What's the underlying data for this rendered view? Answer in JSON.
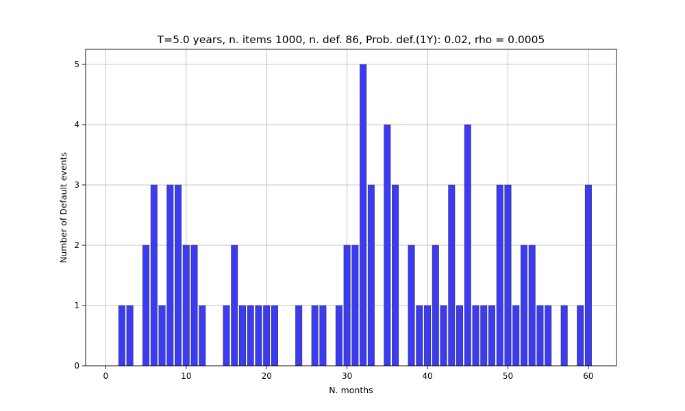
{
  "chart_data": {
    "type": "bar",
    "title": "T=5.0 years, n. items 1000, n. def. 86, Prob. def.(1Y): 0.02, rho = 0.0005",
    "xlabel": "N. months",
    "ylabel": "Number of Default events",
    "xlim": [
      -2.5,
      63.5
    ],
    "ylim": [
      0,
      5.25
    ],
    "xticks": [
      0,
      10,
      20,
      30,
      40,
      50,
      60
    ],
    "yticks": [
      0,
      1,
      2,
      3,
      4,
      5
    ],
    "grid": true,
    "bar_color": "#3b3bf5",
    "x": [
      1,
      2,
      3,
      4,
      5,
      6,
      7,
      8,
      9,
      10,
      11,
      12,
      13,
      14,
      15,
      16,
      17,
      18,
      19,
      20,
      21,
      22,
      23,
      24,
      25,
      26,
      27,
      28,
      29,
      30,
      31,
      32,
      33,
      34,
      35,
      36,
      37,
      38,
      39,
      40,
      41,
      42,
      43,
      44,
      45,
      46,
      47,
      48,
      49,
      50,
      51,
      52,
      53,
      54,
      55,
      56,
      57,
      58,
      59,
      60
    ],
    "values": [
      0,
      1,
      1,
      0,
      2,
      3,
      1,
      3,
      3,
      2,
      2,
      1,
      0,
      0,
      1,
      2,
      1,
      1,
      1,
      1,
      1,
      0,
      0,
      1,
      0,
      1,
      1,
      0,
      1,
      2,
      2,
      5,
      3,
      0,
      4,
      3,
      0,
      2,
      1,
      1,
      2,
      1,
      3,
      1,
      4,
      1,
      1,
      1,
      3,
      3,
      1,
      2,
      2,
      1,
      1,
      0,
      1,
      0,
      1,
      3
    ]
  }
}
